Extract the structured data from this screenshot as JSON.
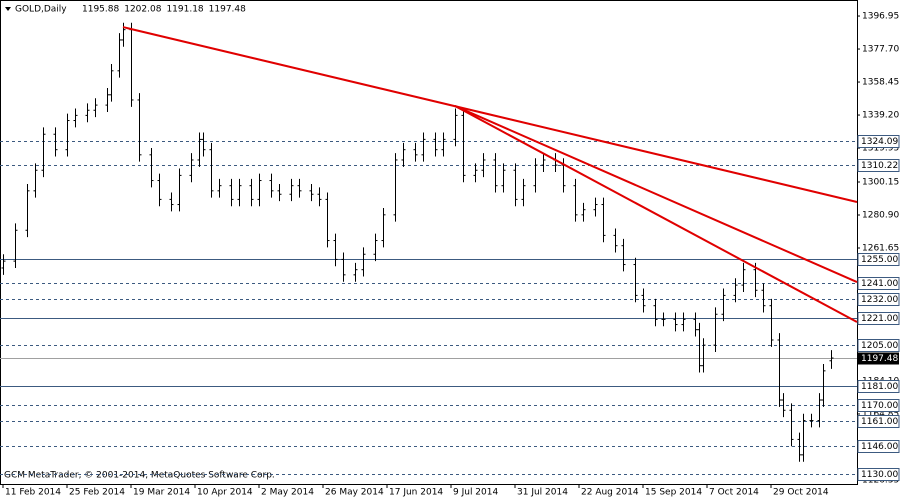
{
  "chart_data": {
    "type": "ohlc",
    "symbol": "GOLD,Daily",
    "copyright": "GCM MetaTrader, © 2001-2014, MetaQuotes Software Corp.",
    "bar_color": "#000000",
    "trendline_color": "#e00000",
    "level_color": "#3c5a80",
    "current_color": "#a0a0a0",
    "xlim": [
      -0.75,
      213.5
    ],
    "ylim": [
      1124,
      1406.3
    ],
    "xticks": [
      {
        "value": 0,
        "label": "11 Feb 2014"
      },
      {
        "value": 16,
        "label": "25 Feb 2014"
      },
      {
        "value": 32,
        "label": "19 Mar 2014"
      },
      {
        "value": 48,
        "label": "10 Apr 2014"
      },
      {
        "value": 64,
        "label": "2 May 2014"
      },
      {
        "value": 80,
        "label": "26 May 2014"
      },
      {
        "value": 96,
        "label": "17 Jun 2014"
      },
      {
        "value": 112,
        "label": "9 Jul 2014"
      },
      {
        "value": 128,
        "label": "31 Jul 2014"
      },
      {
        "value": 144,
        "label": "22 Aug 2014"
      },
      {
        "value": 160,
        "label": "15 Sep 2014"
      },
      {
        "value": 176,
        "label": "7 Oct 2014"
      },
      {
        "value": 192,
        "label": "29 Oct 2014"
      }
    ],
    "yticks": [
      1396.95,
      {
        "value": 1377.7,
        "label": "1377.70"
      },
      1358.45,
      {
        "value": 1339.2,
        "label": "1339.20"
      },
      1319.95,
      1300.15,
      {
        "value": 1280.9,
        "label": "1280.90"
      },
      1261.65,
      {
        "value": 1184.1,
        "label": "1184.10"
      },
      1164.85,
      1126.35
    ],
    "x": [
      0,
      3,
      6,
      8,
      10,
      13,
      16,
      18,
      21,
      23,
      26,
      27,
      29,
      30,
      32,
      34,
      37,
      39,
      42,
      44,
      47,
      49,
      50,
      52,
      54,
      57,
      59,
      62,
      64,
      67,
      69,
      72,
      74,
      77,
      79,
      81,
      83,
      85,
      88,
      90,
      93,
      95,
      98,
      100,
      103,
      105,
      108,
      110,
      113,
      115,
      118,
      120,
      123,
      125,
      128,
      130,
      133,
      135,
      138,
      140,
      143,
      145,
      148,
      150,
      153,
      155,
      158,
      160,
      163,
      165,
      168,
      170,
      173,
      174,
      175,
      178,
      180,
      183,
      185,
      188,
      190,
      192,
      194,
      195,
      197,
      199,
      200,
      202,
      204,
      205,
      207
    ],
    "open": [
      1250,
      1254,
      1272,
      1295,
      1307,
      1328,
      1319,
      1336,
      1339,
      1342,
      1345,
      1351,
      1365,
      1383,
      1389,
      1348,
      1316,
      1301,
      1290,
      1287,
      1304,
      1313,
      1325,
      1319,
      1295,
      1298,
      1290,
      1298,
      1290,
      1301,
      1295,
      1293,
      1298,
      1295,
      1293,
      1290,
      1266,
      1255,
      1246,
      1249,
      1258,
      1266,
      1281,
      1313,
      1319,
      1316,
      1325,
      1319,
      1325,
      1339,
      1304,
      1307,
      1313,
      1298,
      1307,
      1290,
      1298,
      1310,
      1313,
      1310,
      1298,
      1281,
      1284,
      1287,
      1269,
      1263,
      1252,
      1234,
      1228,
      1220,
      1220,
      1217,
      1220,
      1214,
      1193,
      1205,
      1223,
      1234,
      1240,
      1249,
      1237,
      1228,
      1208,
      1173,
      1167,
      1150,
      1141,
      1161,
      1161,
      1173,
      1195.88
    ],
    "high": [
      1258,
      1276,
      1299,
      1311,
      1332,
      1332,
      1340,
      1343,
      1346,
      1349,
      1355,
      1369,
      1387,
      1393,
      1393,
      1352,
      1320,
      1305,
      1294,
      1308,
      1317,
      1329,
      1329,
      1323,
      1302,
      1302,
      1302,
      1302,
      1305,
      1305,
      1299,
      1302,
      1302,
      1299,
      1297,
      1294,
      1270,
      1259,
      1253,
      1262,
      1270,
      1285,
      1317,
      1323,
      1323,
      1329,
      1329,
      1329,
      1343,
      1343,
      1311,
      1317,
      1317,
      1311,
      1311,
      1302,
      1314,
      1317,
      1317,
      1314,
      1302,
      1288,
      1291,
      1291,
      1273,
      1267,
      1256,
      1238,
      1232,
      1224,
      1224,
      1224,
      1224,
      1218,
      1209,
      1227,
      1238,
      1244,
      1253,
      1253,
      1241,
      1232,
      1212,
      1177,
      1171,
      1154,
      1165,
      1165,
      1177,
      1194,
      1202.08
    ],
    "low": [
      1246,
      1250,
      1268,
      1291,
      1303,
      1315,
      1315,
      1332,
      1335,
      1338,
      1341,
      1347,
      1361,
      1379,
      1344,
      1312,
      1297,
      1286,
      1283,
      1283,
      1300,
      1309,
      1315,
      1291,
      1291,
      1286,
      1286,
      1286,
      1286,
      1291,
      1289,
      1289,
      1291,
      1289,
      1286,
      1262,
      1251,
      1242,
      1242,
      1245,
      1254,
      1262,
      1277,
      1309,
      1312,
      1312,
      1315,
      1315,
      1321,
      1300,
      1300,
      1303,
      1294,
      1294,
      1286,
      1286,
      1294,
      1306,
      1306,
      1294,
      1277,
      1277,
      1280,
      1265,
      1259,
      1248,
      1230,
      1224,
      1216,
      1216,
      1213,
      1213,
      1210,
      1189,
      1189,
      1201,
      1219,
      1230,
      1236,
      1233,
      1224,
      1204,
      1169,
      1163,
      1146,
      1137,
      1137,
      1157,
      1157,
      1169,
      1191.18
    ],
    "close": [
      1254,
      1272,
      1295,
      1307,
      1328,
      1319,
      1336,
      1339,
      1342,
      1345,
      1351,
      1365,
      1383,
      1389,
      1348,
      1316,
      1301,
      1290,
      1287,
      1304,
      1313,
      1325,
      1319,
      1295,
      1298,
      1290,
      1298,
      1290,
      1301,
      1295,
      1293,
      1298,
      1295,
      1293,
      1290,
      1266,
      1255,
      1246,
      1249,
      1258,
      1266,
      1281,
      1313,
      1319,
      1316,
      1325,
      1319,
      1325,
      1339,
      1304,
      1307,
      1313,
      1298,
      1307,
      1290,
      1298,
      1310,
      1313,
      1310,
      1298,
      1281,
      1284,
      1287,
      1269,
      1263,
      1252,
      1234,
      1228,
      1220,
      1220,
      1217,
      1220,
      1214,
      1193,
      1205,
      1223,
      1234,
      1240,
      1249,
      1237,
      1228,
      1208,
      1173,
      1167,
      1150,
      1141,
      1161,
      1161,
      1173,
      1190,
      1197.48
    ],
    "levels": [
      {
        "value": 1324.09,
        "style": "dashed"
      },
      {
        "value": 1310.22,
        "style": "dashed"
      },
      {
        "value": 1255,
        "label": "1255.00",
        "style": "solid"
      },
      {
        "value": 1241,
        "label": "1241.00",
        "style": "dashed"
      },
      {
        "value": 1232,
        "label": "1232.00",
        "style": "dashed"
      },
      {
        "value": 1221,
        "label": "1221.00",
        "style": "solid"
      },
      {
        "value": 1205,
        "label": "1205.00",
        "style": "dashed"
      },
      {
        "value": 1181,
        "label": "1181.00",
        "style": "solid"
      },
      {
        "value": 1170,
        "label": "1170.00",
        "style": "dashed"
      },
      {
        "value": 1161,
        "label": "1161.00",
        "style": "dashed"
      },
      {
        "value": 1146,
        "label": "1146.00",
        "style": "dashed"
      },
      {
        "value": 1130,
        "label": "1130.00",
        "style": "dashed"
      }
    ],
    "trendlines": [
      {
        "x": [
          30,
          213.5
        ],
        "y": [
          1390.5,
          1288.5
        ]
      },
      {
        "x": [
          113,
          213.5
        ],
        "y": [
          1344.5,
          1241.8
        ]
      },
      {
        "x": [
          113,
          213.5
        ],
        "y": [
          1344.5,
          1218.5
        ]
      }
    ]
  }
}
